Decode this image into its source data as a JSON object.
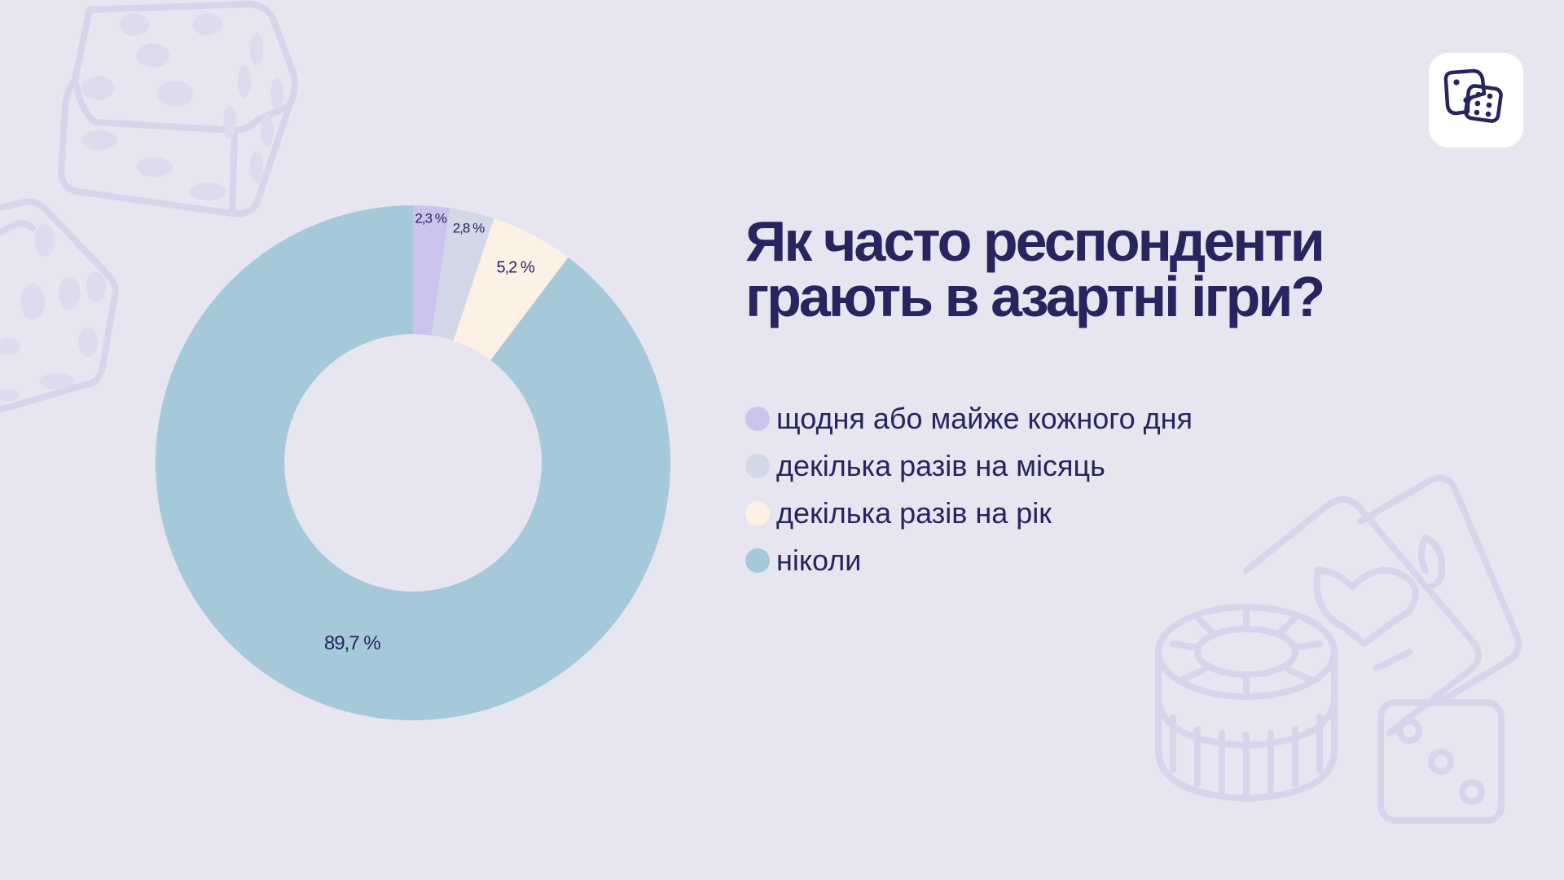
{
  "title": "Як часто респонденти грають в азартні ігри?",
  "logo_icon": "dice-icon",
  "decorations": [
    "dice-icon",
    "dice-icon",
    "poker-chip-icon",
    "playing-cards-icon",
    "dice-icon"
  ],
  "colors": {
    "background": "#e7e5ef",
    "text": "#27245e",
    "decor": "#d8d4ec"
  },
  "chart_data": {
    "type": "pie",
    "style": "donut",
    "title": "",
    "legend_position": "right",
    "categories": [
      "щодня або майже кожного дня",
      "декілька разів на місяць",
      "декілька разів на рік",
      "ніколи"
    ],
    "values": [
      2.3,
      2.8,
      5.2,
      89.7
    ],
    "data_labels": [
      "2,3 %",
      "2,8 %",
      "5,2 %",
      "89,7 %"
    ],
    "colors": [
      "#cdc4ee",
      "#d3d8e8",
      "#fdf1e6",
      "#a5c9d8"
    ]
  }
}
